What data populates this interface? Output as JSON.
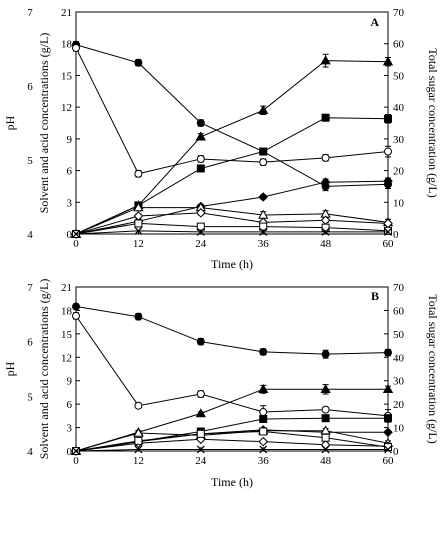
{
  "chart_data": [
    {
      "type": "line",
      "panel_label": "A",
      "xlabel": "Time (h)",
      "ylabel_outer": "pH",
      "ylabel_left": "Solvent and acid concentrations (g/L)",
      "ylabel_right": "Total sugar concentration (g/L)",
      "x_ticks": [
        0,
        12,
        24,
        36,
        48,
        60
      ],
      "y_ph_ticks": [
        4,
        5,
        6,
        7
      ],
      "y_left_ticks": [
        0,
        3,
        6,
        9,
        12,
        15,
        18,
        21
      ],
      "y_right_ticks": [
        0,
        10,
        20,
        30,
        40,
        50,
        60,
        70
      ],
      "xlim": [
        0,
        60
      ],
      "y_left_lim": [
        0,
        21
      ],
      "y_right_lim": [
        0,
        70
      ],
      "series": [
        {
          "marker": "circle-filled",
          "axis": "left",
          "x": [
            0,
            12,
            24,
            36,
            48,
            60
          ],
          "y": [
            17.9,
            16.2,
            10.5,
            7.8,
            4.5,
            4.7
          ],
          "err": [
            0.3,
            0.3,
            0.3,
            0.3,
            0.4,
            0.4
          ]
        },
        {
          "marker": "circle-open",
          "axis": "left",
          "x": [
            0,
            12,
            24,
            36,
            48,
            60
          ],
          "y": [
            17.6,
            5.7,
            7.1,
            6.8,
            7.2,
            7.8
          ],
          "err": [
            0.3,
            0.3,
            0.3,
            0.3,
            0.3,
            0.5
          ]
        },
        {
          "marker": "triangle-filled",
          "axis": "left",
          "x": [
            0,
            12,
            24,
            36,
            48,
            60
          ],
          "y": [
            0,
            2.7,
            9.2,
            11.7,
            16.4,
            16.3
          ],
          "err": [
            0,
            0.2,
            0.3,
            0.4,
            0.6,
            0.4
          ]
        },
        {
          "marker": "square-filled",
          "axis": "left",
          "x": [
            0,
            12,
            24,
            36,
            48,
            60
          ],
          "y": [
            0,
            2.7,
            6.2,
            7.8,
            11.0,
            10.9
          ],
          "err": [
            0,
            0.2,
            0.2,
            0.3,
            0.3,
            0.4
          ]
        },
        {
          "marker": "diamond-filled",
          "axis": "left",
          "x": [
            0,
            12,
            24,
            36,
            48,
            60
          ],
          "y": [
            0,
            1.2,
            2.6,
            3.5,
            4.9,
            5.0
          ],
          "err": [
            0,
            0.1,
            0.2,
            0.2,
            0.3,
            0.3
          ]
        },
        {
          "marker": "triangle-open",
          "axis": "left",
          "x": [
            0,
            12,
            24,
            36,
            48,
            60
          ],
          "y": [
            0,
            2.5,
            2.5,
            1.8,
            1.9,
            1.1
          ],
          "err": [
            0,
            0.3,
            0.2,
            0.3,
            0.3,
            0.3
          ]
        },
        {
          "marker": "diamond-open",
          "axis": "left",
          "x": [
            0,
            12,
            24,
            36,
            48,
            60
          ],
          "y": [
            0,
            1.7,
            2.0,
            1.1,
            1.3,
            1.0
          ],
          "err": [
            0,
            0.2,
            0.2,
            0.2,
            0.2,
            0.2
          ]
        },
        {
          "marker": "square-open",
          "axis": "left",
          "x": [
            0,
            12,
            24,
            36,
            48,
            60
          ],
          "y": [
            0,
            1.0,
            0.7,
            0.7,
            0.6,
            0.3
          ],
          "err": [
            0,
            0.1,
            0.1,
            0.1,
            0.1,
            0.1
          ]
        },
        {
          "marker": "cross",
          "axis": "left",
          "x": [
            0,
            12,
            24,
            36,
            48,
            60
          ],
          "y": [
            0,
            0.3,
            0.2,
            0.2,
            0.2,
            0.2
          ],
          "err": [
            0,
            0,
            0,
            0,
            0,
            0
          ]
        }
      ]
    },
    {
      "type": "line",
      "panel_label": "B",
      "xlabel": "Time (h)",
      "ylabel_outer": "pH",
      "ylabel_left": "Solvent and acid concentrations (g/L)",
      "ylabel_right": "Total sugar concentration (g/L)",
      "x_ticks": [
        0,
        12,
        24,
        36,
        48,
        60
      ],
      "y_ph_ticks": [
        4,
        5,
        6,
        7
      ],
      "y_left_ticks": [
        0,
        3,
        6,
        9,
        12,
        15,
        18,
        21
      ],
      "y_right_ticks": [
        0,
        10,
        20,
        30,
        40,
        50,
        60,
        70
      ],
      "xlim": [
        0,
        60
      ],
      "y_left_lim": [
        0,
        21
      ],
      "y_right_lim": [
        0,
        70
      ],
      "series": [
        {
          "marker": "circle-filled",
          "axis": "left",
          "x": [
            0,
            12,
            24,
            36,
            48,
            60
          ],
          "y": [
            18.5,
            17.2,
            14.0,
            12.7,
            12.4,
            12.6
          ],
          "err": [
            0.3,
            0.4,
            0.4,
            0.4,
            0.5,
            0.4
          ]
        },
        {
          "marker": "circle-open",
          "axis": "left",
          "x": [
            0,
            12,
            24,
            36,
            48,
            60
          ],
          "y": [
            17.3,
            5.8,
            7.3,
            5.0,
            5.3,
            4.5
          ],
          "err": [
            0.4,
            0.3,
            0.4,
            0.8,
            0.3,
            0.8
          ]
        },
        {
          "marker": "triangle-filled",
          "axis": "left",
          "x": [
            0,
            12,
            24,
            36,
            48,
            60
          ],
          "y": [
            0,
            2.4,
            4.8,
            7.9,
            7.9,
            7.9
          ],
          "err": [
            0,
            0.2,
            0.2,
            0.5,
            0.6,
            0.4
          ]
        },
        {
          "marker": "square-filled",
          "axis": "left",
          "x": [
            0,
            12,
            24,
            36,
            48,
            60
          ],
          "y": [
            0,
            1.2,
            2.5,
            4.1,
            4.2,
            4.2
          ],
          "err": [
            0,
            0.1,
            0.2,
            0.3,
            0.3,
            0.3
          ]
        },
        {
          "marker": "diamond-filled",
          "axis": "left",
          "x": [
            0,
            12,
            24,
            36,
            48,
            60
          ],
          "y": [
            0,
            1.2,
            2.2,
            2.7,
            2.4,
            2.4
          ],
          "err": [
            0,
            0.1,
            0.2,
            0.2,
            0.2,
            0.2
          ]
        },
        {
          "marker": "triangle-open",
          "axis": "left",
          "x": [
            0,
            12,
            24,
            36,
            48,
            60
          ],
          "y": [
            0,
            2.3,
            2.0,
            2.6,
            2.6,
            1.0
          ],
          "err": [
            0,
            0.3,
            0.2,
            0.3,
            0.3,
            0.3
          ]
        },
        {
          "marker": "diamond-open",
          "axis": "left",
          "x": [
            0,
            12,
            24,
            36,
            48,
            60
          ],
          "y": [
            0,
            1.0,
            1.5,
            1.2,
            0.8,
            0.6
          ],
          "err": [
            0,
            0.1,
            0.2,
            0.2,
            0.2,
            0.2
          ]
        },
        {
          "marker": "square-open",
          "axis": "left",
          "x": [
            0,
            12,
            24,
            36,
            48,
            60
          ],
          "y": [
            0,
            1.3,
            2.2,
            2.5,
            1.7,
            0.5
          ],
          "err": [
            0,
            0.2,
            0.2,
            0.2,
            0.2,
            0.2
          ]
        },
        {
          "marker": "cross",
          "axis": "left",
          "x": [
            0,
            12,
            24,
            36,
            48,
            60
          ],
          "y": [
            0,
            0.2,
            0.2,
            0.2,
            0.2,
            0.2
          ],
          "err": [
            0,
            0,
            0,
            0,
            0,
            0
          ]
        }
      ]
    }
  ]
}
